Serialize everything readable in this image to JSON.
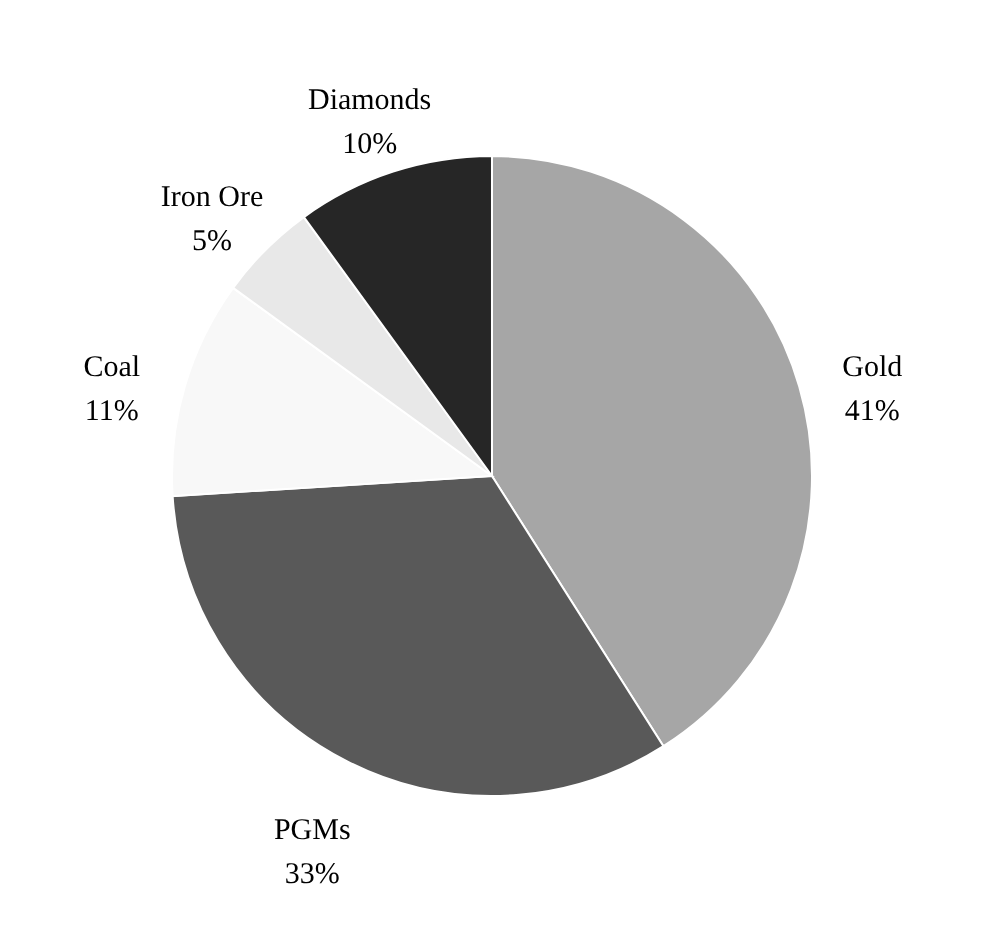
{
  "chart_data": {
    "type": "pie",
    "categories": [
      "Gold",
      "PGMs",
      "Coal",
      "Iron Ore",
      "Diamonds"
    ],
    "values": [
      41,
      33,
      11,
      5,
      10
    ],
    "value_labels": [
      "41%",
      "33%",
      "11%",
      "5%",
      "10%"
    ],
    "colors": [
      "#a6a6a6",
      "#595959",
      "#f8f8f8",
      "#e8e8e8",
      "#262626"
    ]
  }
}
